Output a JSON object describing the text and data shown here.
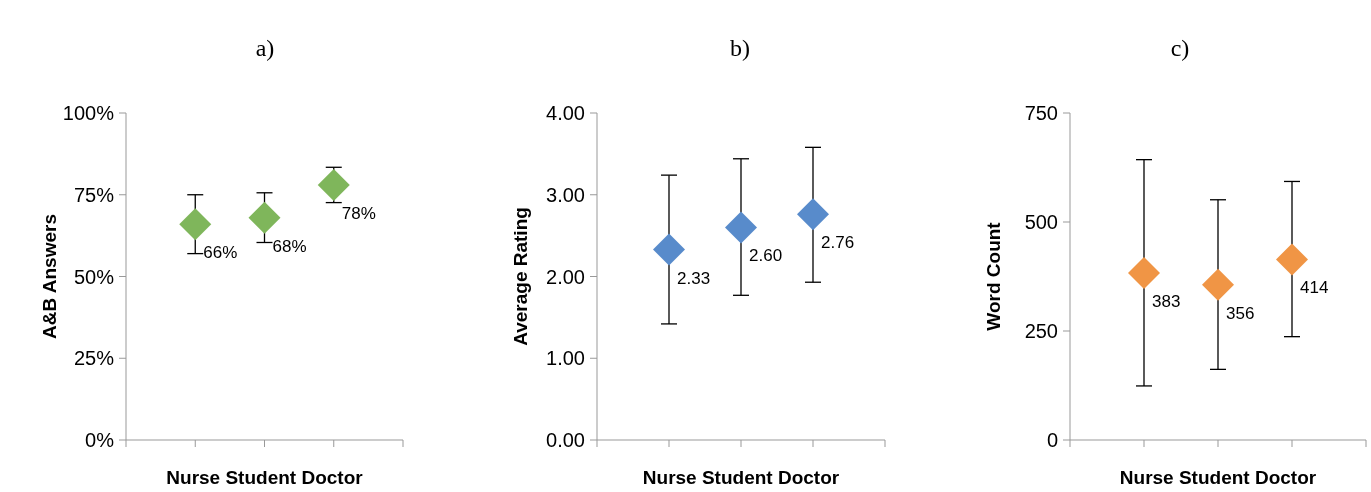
{
  "chart_data": [
    {
      "type": "scatter",
      "title": "a)",
      "xlabel": "Nurse Student Doctor",
      "ylabel": "A&B Answers",
      "categories": [
        null,
        null,
        null
      ],
      "marker": "diamond",
      "grid": false,
      "ylim": [
        0,
        100
      ],
      "yticks": [
        {
          "value": 0,
          "label": "0%"
        },
        {
          "value": 25,
          "label": "25%"
        },
        {
          "value": 50,
          "label": "50%"
        },
        {
          "value": 75,
          "label": "75%"
        },
        {
          "value": 100,
          "label": "100%"
        }
      ],
      "series": [
        {
          "color": "#7fb65b",
          "values": [
            66,
            68,
            78
          ],
          "errors": [
            [
              57,
              75
            ],
            [
              60.4,
              75.6
            ],
            [
              72.6,
              83.4
            ]
          ],
          "value_labels": [
            "66%",
            "68%",
            "78%"
          ]
        }
      ]
    },
    {
      "type": "scatter",
      "title": "b)",
      "xlabel": "Nurse Student Doctor",
      "ylabel": "Average Rating",
      "categories": [
        null,
        null,
        null
      ],
      "marker": "diamond",
      "grid": false,
      "ylim": [
        0,
        4
      ],
      "yticks": [
        {
          "value": 0,
          "label": "0.00"
        },
        {
          "value": 1,
          "label": "1.00"
        },
        {
          "value": 2,
          "label": "2.00"
        },
        {
          "value": 3,
          "label": "3.00"
        },
        {
          "value": 4,
          "label": "4.00"
        }
      ],
      "series": [
        {
          "color": "#588bcb",
          "values": [
            2.33,
            2.6,
            2.76
          ],
          "errors": [
            [
              1.42,
              3.24
            ],
            [
              1.77,
              3.44
            ],
            [
              1.93,
              3.58
            ]
          ],
          "value_labels": [
            "2.33",
            "2.60",
            "2.76"
          ]
        }
      ]
    },
    {
      "type": "scatter",
      "title": "c)",
      "xlabel": "Nurse Student Doctor",
      "ylabel": "Word Count",
      "categories": [
        null,
        null,
        null
      ],
      "marker": "diamond",
      "grid": false,
      "ylim": [
        0,
        750
      ],
      "yticks": [
        0,
        250,
        500,
        750
      ],
      "series": [
        {
          "color": "#f09545",
          "values": [
            383,
            356,
            414
          ],
          "errors": [
            [
              124,
              643
            ],
            [
              162,
              551
            ],
            [
              237,
              593
            ]
          ],
          "value_labels": [
            "383",
            "356",
            "414"
          ]
        }
      ]
    }
  ]
}
